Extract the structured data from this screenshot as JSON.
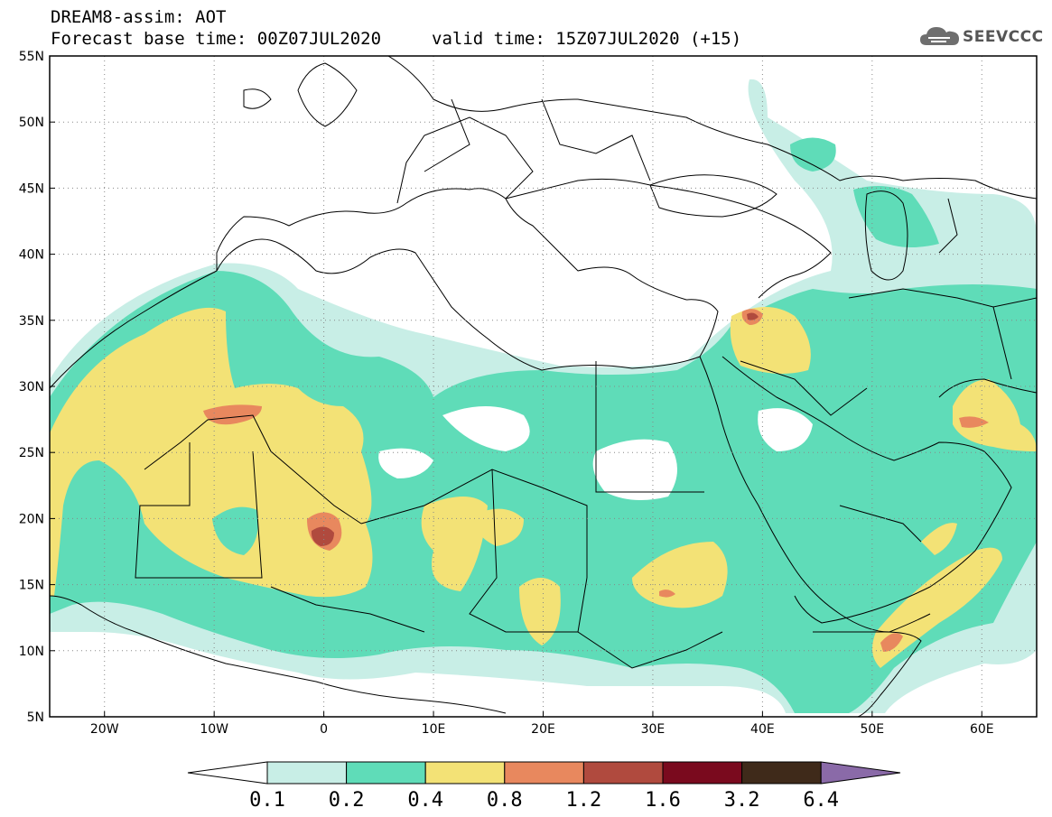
{
  "header": {
    "title": "DREAM8-assim: AOT",
    "base_time": "Forecast base time: 00Z07JUL2020",
    "valid_time": "valid time: 15Z07JUL2020 (+15)"
  },
  "logo": {
    "text": "SEEVCCC",
    "icon": "cloud-icon"
  },
  "map": {
    "lon_range": [
      -25,
      65
    ],
    "lat_range": [
      5,
      55
    ],
    "x_ticks": [
      "20W",
      "10W",
      "0",
      "10E",
      "20E",
      "30E",
      "40E",
      "50E",
      "60E"
    ],
    "y_ticks": [
      "5N",
      "10N",
      "15N",
      "20N",
      "25N",
      "30N",
      "35N",
      "40N",
      "45N",
      "50N",
      "55N"
    ],
    "grid": "dotted",
    "colors": {
      "very_low": "#c8eee6",
      "low": "#5fdcb8",
      "medium": "#f3e276",
      "high": "#e8885e",
      "very_high": "#b04a3e",
      "extreme": "#7a1a2a",
      "above": "#3f2a1a",
      "top": "#9a6fb8"
    }
  },
  "colorbar": {
    "labels": [
      "0.1",
      "0.2",
      "0.4",
      "0.8",
      "1.2",
      "1.6",
      "3.2",
      "6.4"
    ],
    "colors": [
      "#ffffff",
      "#c8eee6",
      "#5fdcb8",
      "#f3e276",
      "#e8885e",
      "#b04a3e",
      "#7a0a1e",
      "#3f2a1a",
      "#8a6aa8"
    ]
  }
}
